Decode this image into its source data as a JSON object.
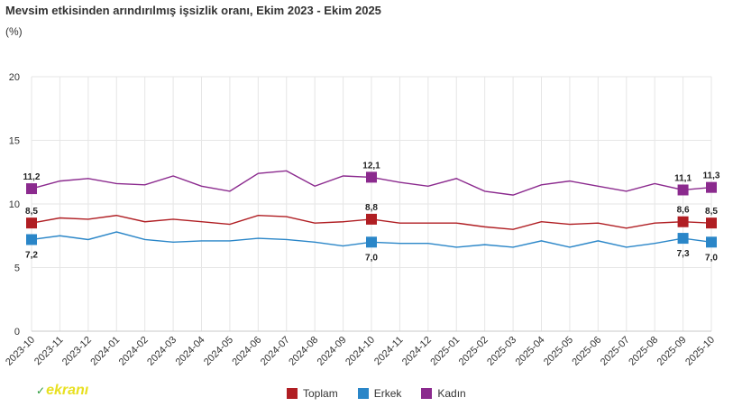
{
  "chart_data": {
    "type": "line",
    "title": "Mevsim etkisinden arındırılmış işsizlik oranı, Ekim 2023 - Ekim 2025",
    "unit": "(%)",
    "categories": [
      "2023-10",
      "2023-11",
      "2023-12",
      "2024-01",
      "2024-02",
      "2024-03",
      "2024-04",
      "2024-05",
      "2024-06",
      "2024-07",
      "2024-08",
      "2024-09",
      "2024-10",
      "2024-11",
      "2024-12",
      "2025-01",
      "2025-02",
      "2025-03",
      "2025-04",
      "2025-05",
      "2025-06",
      "2025-07",
      "2025-08",
      "2025-09",
      "2025-10"
    ],
    "ylim": [
      0,
      20
    ],
    "yticks": [
      "0",
      "5",
      "10",
      "15",
      "20"
    ],
    "grid": true,
    "legend_position": "bottom",
    "series": [
      {
        "name": "Toplam",
        "color": "#b01e23",
        "values": [
          8.5,
          8.9,
          8.8,
          9.1,
          8.6,
          8.8,
          8.6,
          8.4,
          9.1,
          9.0,
          8.5,
          8.6,
          8.8,
          8.5,
          8.5,
          8.5,
          8.2,
          8.0,
          8.6,
          8.4,
          8.5,
          8.1,
          8.5,
          8.6,
          8.5
        ],
        "labels": [
          {
            "i": 0,
            "text": "8,5",
            "pos": "above"
          },
          {
            "i": 12,
            "text": "8,8",
            "pos": "above"
          },
          {
            "i": 23,
            "text": "8,6",
            "pos": "above"
          },
          {
            "i": 24,
            "text": "8,5",
            "pos": "above"
          }
        ]
      },
      {
        "name": "Erkek",
        "color": "#2a86c8",
        "values": [
          7.2,
          7.5,
          7.2,
          7.8,
          7.2,
          7.0,
          7.1,
          7.1,
          7.3,
          7.2,
          7.0,
          6.7,
          7.0,
          6.9,
          6.9,
          6.6,
          6.8,
          6.6,
          7.1,
          6.6,
          7.1,
          6.6,
          6.9,
          7.3,
          7.0
        ],
        "labels": [
          {
            "i": 0,
            "text": "7,2",
            "pos": "below"
          },
          {
            "i": 12,
            "text": "7,0",
            "pos": "below"
          },
          {
            "i": 23,
            "text": "7,3",
            "pos": "below"
          },
          {
            "i": 24,
            "text": "7,0",
            "pos": "below"
          }
        ]
      },
      {
        "name": "Kadın",
        "color": "#8b2a8e",
        "values": [
          11.2,
          11.8,
          12.0,
          11.6,
          11.5,
          12.2,
          11.4,
          11.0,
          12.4,
          12.6,
          11.4,
          12.2,
          12.1,
          11.7,
          11.4,
          12.0,
          11.0,
          10.7,
          11.5,
          11.8,
          11.4,
          11.0,
          11.6,
          11.1,
          11.3
        ],
        "labels": [
          {
            "i": 0,
            "text": "11,2",
            "pos": "above"
          },
          {
            "i": 12,
            "text": "12,1",
            "pos": "above"
          },
          {
            "i": 23,
            "text": "11,1",
            "pos": "above"
          },
          {
            "i": 24,
            "text": "11,3",
            "pos": "above"
          }
        ]
      }
    ],
    "marker_indices": [
      0,
      12,
      23,
      24
    ]
  },
  "legend": {
    "toplam": "Toplam",
    "erkek": "Erkek",
    "kadin": "Kadın"
  },
  "watermark": "ekranı",
  "colors": {
    "toplam": "#b01e23",
    "erkek": "#2a86c8",
    "kadin": "#8b2a8e",
    "grid": "#e6e6e6"
  }
}
